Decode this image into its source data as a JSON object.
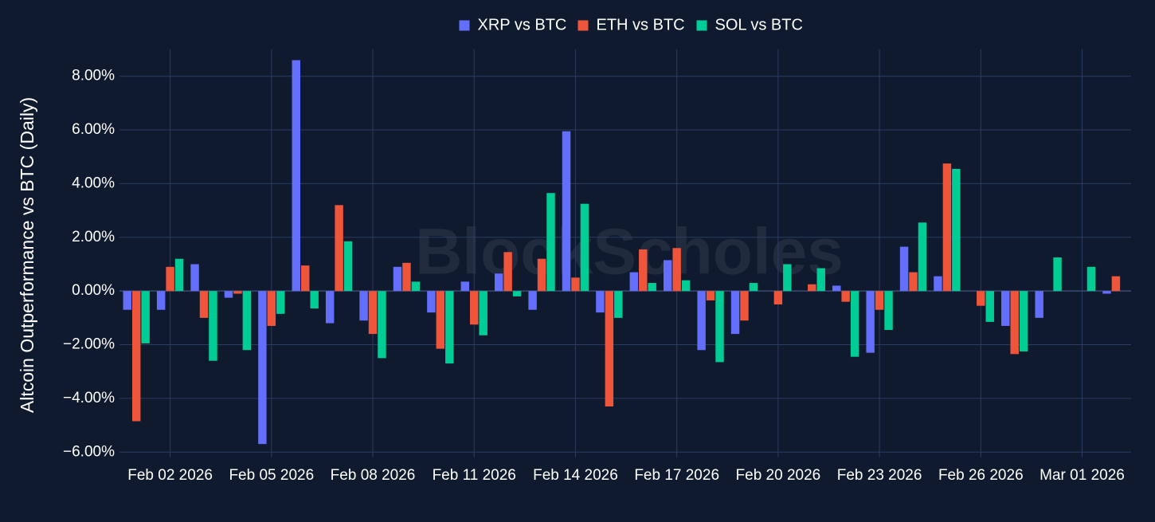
{
  "chart_data": {
    "type": "bar",
    "ylabel": "Altcoin Outperformance vs BTC (Daily)",
    "watermark": "BlockScholes",
    "ylim": [
      -6.2,
      9.0
    ],
    "yticks": [
      8,
      6,
      4,
      2,
      0,
      -2,
      -4,
      -6
    ],
    "ytick_labels": [
      "8.00%",
      "6.00%",
      "4.00%",
      "2.00%",
      "0.00%",
      "−2.00%",
      "−4.00%",
      "−6.00%"
    ],
    "x_dates": [
      "2026-02-01",
      "2026-02-02",
      "2026-02-03",
      "2026-02-04",
      "2026-02-05",
      "2026-02-06",
      "2026-02-07",
      "2026-02-08",
      "2026-02-09",
      "2026-02-10",
      "2026-02-11",
      "2026-02-12",
      "2026-02-13",
      "2026-02-14",
      "2026-02-15",
      "2026-02-16",
      "2026-02-17",
      "2026-02-18",
      "2026-02-19",
      "2026-02-20",
      "2026-02-21",
      "2026-02-22",
      "2026-02-23",
      "2026-02-24",
      "2026-02-25",
      "2026-02-26",
      "2026-02-27",
      "2026-02-28",
      "2026-03-01",
      "2026-03-02"
    ],
    "xtick_dates": [
      "2026-02-02",
      "2026-02-05",
      "2026-02-08",
      "2026-02-11",
      "2026-02-14",
      "2026-02-17",
      "2026-02-20",
      "2026-02-23",
      "2026-02-26",
      "2026-03-01"
    ],
    "xtick_labels": [
      "Feb 02  2026",
      "Feb 05  2026",
      "Feb 08  2026",
      "Feb 11  2026",
      "Feb 14  2026",
      "Feb 17  2026",
      "Feb 20  2026",
      "Feb 23  2026",
      "Feb 26  2026",
      "Mar 01  2026"
    ],
    "legend_position": "top-center",
    "grid": true,
    "series": [
      {
        "name": "XRP vs BTC",
        "color": "#636efa",
        "values": [
          -0.7,
          -0.7,
          1.0,
          -0.25,
          -5.7,
          8.6,
          -1.2,
          -1.1,
          0.9,
          -0.8,
          0.35,
          0.65,
          -0.7,
          5.95,
          -0.8,
          0.7,
          1.15,
          -2.2,
          -1.6,
          0.0,
          0.0,
          0.2,
          -2.3,
          1.65,
          0.55,
          0.0,
          -1.3,
          -1.0,
          0.0,
          -0.1
        ]
      },
      {
        "name": "ETH vs BTC",
        "color": "#ef553b",
        "values": [
          -4.85,
          0.9,
          -1.0,
          -0.1,
          -1.3,
          0.95,
          3.2,
          -1.6,
          1.05,
          -2.15,
          -1.25,
          1.45,
          1.2,
          0.5,
          -4.3,
          1.55,
          1.6,
          -0.35,
          -1.1,
          -0.5,
          0.25,
          -0.4,
          -0.7,
          0.7,
          4.75,
          -0.55,
          -2.35,
          0.0,
          0.0,
          0.55
        ]
      },
      {
        "name": "SOL vs BTC",
        "color": "#00cc96",
        "values": [
          -1.95,
          1.2,
          -2.6,
          -2.2,
          -0.85,
          -0.65,
          1.85,
          -2.5,
          0.35,
          -2.7,
          -1.65,
          -0.2,
          3.65,
          3.25,
          -1.0,
          0.3,
          0.4,
          -2.65,
          0.3,
          1.0,
          0.85,
          -2.45,
          -1.45,
          2.55,
          4.55,
          -1.15,
          -2.25,
          1.25,
          0.9,
          0.0
        ]
      }
    ]
  }
}
